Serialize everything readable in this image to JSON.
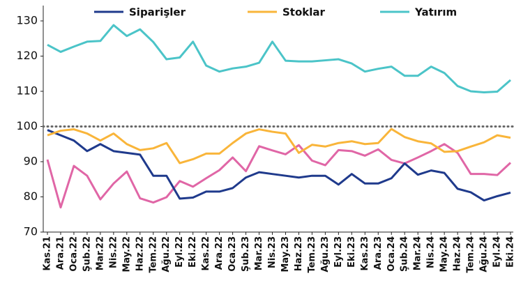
{
  "chart_data": {
    "type": "line",
    "categories": [
      "Kas.21",
      "Ara.21",
      "Oca.22",
      "Şub.22",
      "Mar.22",
      "Nis.22",
      "May.22",
      "Haz.22",
      "Tem.22",
      "Ağu.22",
      "Eyl.22",
      "Eki.22",
      "Kas.22",
      "Ara.22",
      "Oca.23",
      "Şub.23",
      "Mar.23",
      "Nis.23",
      "May.23",
      "Haz.23",
      "Tem.23",
      "Ağu.23",
      "Eyl.23",
      "Eki.23",
      "Kas.23",
      "Ara.23",
      "Oca.24",
      "Şub.24",
      "Mar.24",
      "Nis.24",
      "May.24",
      "Haz.24",
      "Tem.24",
      "Ağu.24",
      "Eyl.24",
      "Eki.24"
    ],
    "series": [
      {
        "name": "Siparişler",
        "color": "#1f3a8c",
        "values": [
          99,
          97.5,
          96,
          93,
          95,
          93,
          92.5,
          92,
          86,
          86,
          79.5,
          79.8,
          81.5,
          81.5,
          82.5,
          85.5,
          87,
          86.5,
          86,
          85.5,
          86,
          86,
          83.5,
          86.5,
          83.8,
          83.8,
          85.3,
          89.5,
          86.3,
          87.5,
          86.8,
          82.3,
          81.3,
          79,
          80.2,
          81.2
        ]
      },
      {
        "name": "Stoklar",
        "color": "#f9b53a",
        "values": [
          97.5,
          98.8,
          99.2,
          98,
          96,
          98,
          95,
          93.3,
          93.8,
          95.3,
          89.6,
          90.7,
          92.3,
          92.3,
          95.3,
          98,
          99.2,
          98.5,
          98,
          92.5,
          94.8,
          94.3,
          95.3,
          95.8,
          95,
          95.3,
          99.3,
          97,
          95.8,
          95.2,
          92.8,
          93,
          94.3,
          95.5,
          97.5,
          96.8
        ]
      },
      {
        "name": "Yatırım",
        "color": "#4bc4c8",
        "values": [
          123.2,
          121.2,
          122.7,
          124.1,
          124.3,
          128.8,
          125.7,
          127.6,
          124,
          119.1,
          119.6,
          124.1,
          117.3,
          115.6,
          116.5,
          117,
          118.1,
          124.1,
          118.7,
          118.5,
          118.5,
          118.8,
          119.1,
          117.9,
          115.6,
          116.4,
          117,
          114.4,
          114.4,
          117,
          115.2,
          111.5,
          110,
          109.7,
          109.9,
          113.2
        ]
      },
      {
        "color": "#e066a6",
        "values": [
          90.6,
          77,
          88.8,
          86,
          79.3,
          83.8,
          87.2,
          79.6,
          78.4,
          79.9,
          84.5,
          82.9,
          85.3,
          87.6,
          91.2,
          87.3,
          94.4,
          93.2,
          92.1,
          94.7,
          90.3,
          89,
          93.3,
          93,
          91.7,
          93.5,
          90.5,
          89.5,
          91.2,
          93,
          95,
          92.5,
          86.5,
          86.5,
          86.2,
          89.7
        ]
      }
    ],
    "reference_line": {
      "value": 100,
      "color": "#666"
    },
    "ylim": [
      70,
      130
    ],
    "yticks": [
      70,
      80,
      90,
      100,
      110,
      120,
      130
    ],
    "grid": false,
    "legend": "top"
  }
}
